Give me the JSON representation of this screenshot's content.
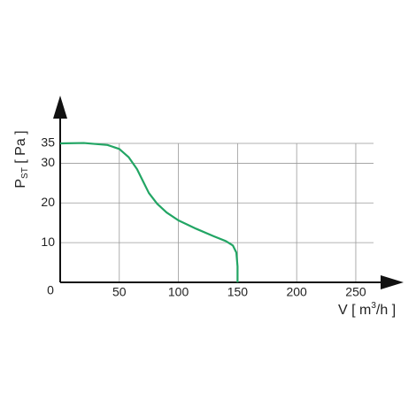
{
  "chart_data": {
    "type": "line",
    "x_label": {
      "main": "V [ m",
      "sup": "3",
      "rest": "/h ]"
    },
    "y_label": {
      "main": "P",
      "sub": "ST",
      "rest": " [ Pa ]"
    },
    "origin_label": "0",
    "x": [
      0,
      20,
      40,
      50,
      58,
      65,
      70,
      75,
      82,
      90,
      100,
      115,
      130,
      140,
      146,
      149,
      150,
      150
    ],
    "series": [
      {
        "color": "#22a564",
        "values": [
          35,
          35.1,
          34.6,
          33.6,
          31.5,
          28.5,
          25.5,
          22.5,
          19.8,
          17.6,
          15.6,
          13.5,
          11.6,
          10.4,
          9.3,
          7.5,
          4,
          0
        ]
      }
    ],
    "xlim": [
      0,
      265
    ],
    "ylim": [
      0,
      35
    ],
    "xticks": [
      50,
      100,
      150,
      200,
      250
    ],
    "yticks": [
      10,
      20,
      30,
      35
    ],
    "grid": true
  }
}
